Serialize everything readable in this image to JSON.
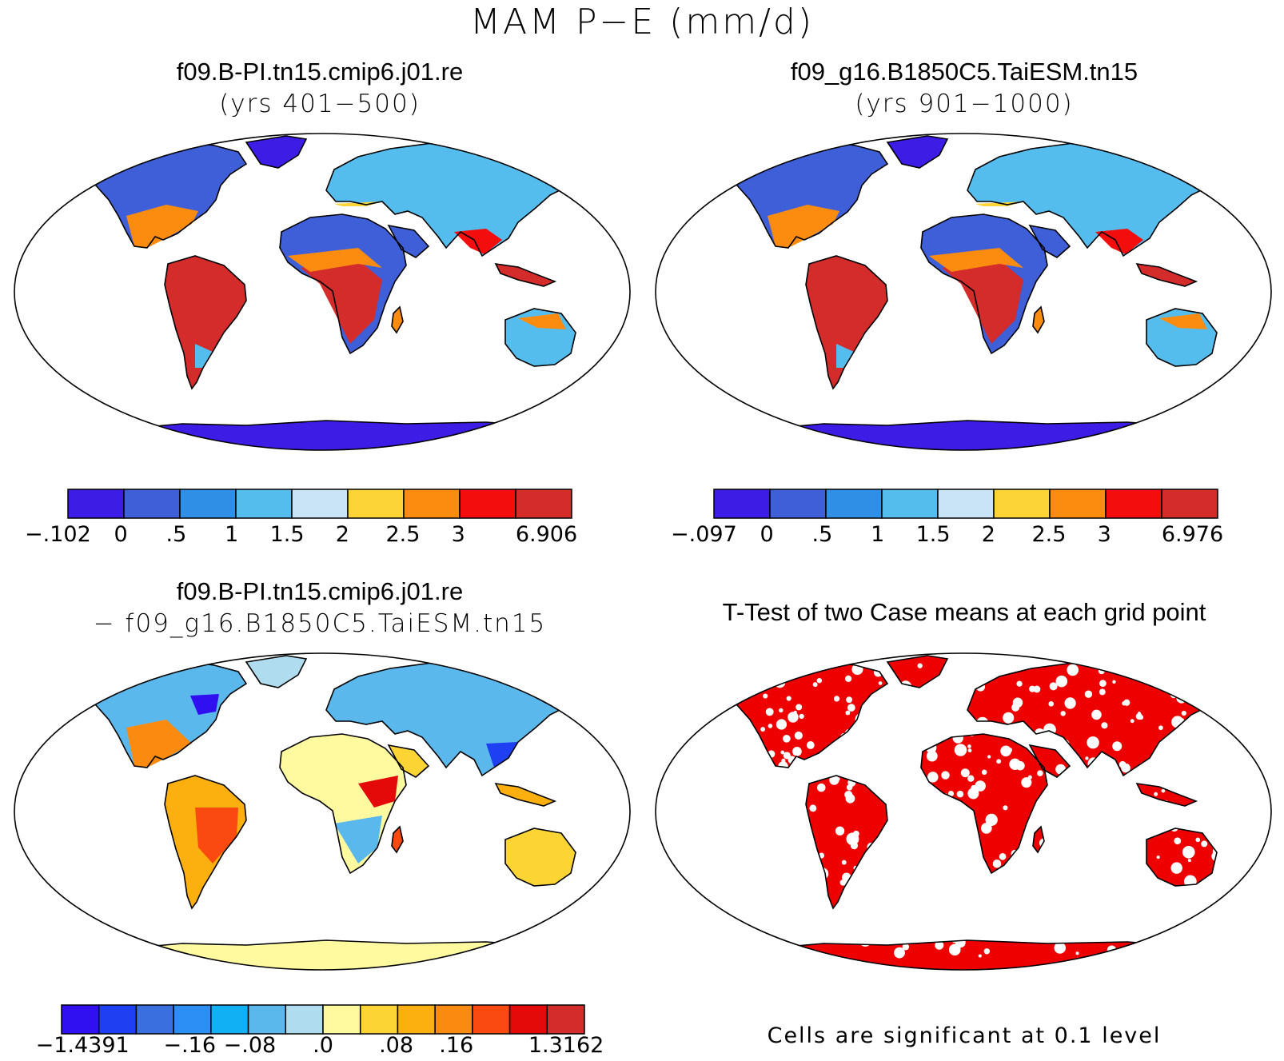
{
  "title": "MAM P−E (mm/d)",
  "panels": {
    "p1": {
      "title": "f09.B-PI.tn15.cmip6.j01.re",
      "subtitle": "(yrs 401−500)",
      "colorbar": {
        "colors": [
          "#3d1de6",
          "#3f5fd9",
          "#2f8fe6",
          "#55bdee",
          "#c8e4f5",
          "#fdd435",
          "#fb8c10",
          "#f40d0d",
          "#d42b2b"
        ],
        "labels": [
          "−.102",
          "0",
          ".5",
          "1",
          "1.5",
          "2",
          "2.5",
          "3",
          "6.906"
        ]
      }
    },
    "p2": {
      "title": "f09_g16.B1850C5.TaiESM.tn15",
      "subtitle": "(yrs 901−1000)",
      "colorbar": {
        "colors": [
          "#3d1de6",
          "#3f5fd9",
          "#2f8fe6",
          "#55bdee",
          "#c8e4f5",
          "#fdd435",
          "#fb8c10",
          "#f40d0d",
          "#d42b2b"
        ],
        "labels": [
          "−.097",
          "0",
          ".5",
          "1",
          "1.5",
          "2",
          "2.5",
          "3",
          "6.976"
        ]
      }
    },
    "p3": {
      "title": "f09.B-PI.tn15.cmip6.j01.re",
      "subtitle": "− f09_g16.B1850C5.TaiESM.tn15",
      "colorbar": {
        "colors": [
          "#3010f0",
          "#1f3ff2",
          "#3a6fe0",
          "#2b8ff5",
          "#10b0f5",
          "#5ab8ec",
          "#b0dcf0",
          "#fffaa0",
          "#fcd535",
          "#fcb010",
          "#fb8a10",
          "#fb4a10",
          "#e40a0a",
          "#d42b2b"
        ],
        "labels": [
          "−1.4391",
          "−.16",
          "−.08",
          ".0",
          ".08",
          ".16",
          "1.3162"
        ]
      }
    },
    "p4": {
      "title": "T-Test of two Case means at each grid point",
      "note": "Cells are significant at 0.1 level"
    }
  },
  "legend_colors": {
    "ocean": "#ffffff",
    "coast": "#000000",
    "significant": "#ee0000"
  }
}
